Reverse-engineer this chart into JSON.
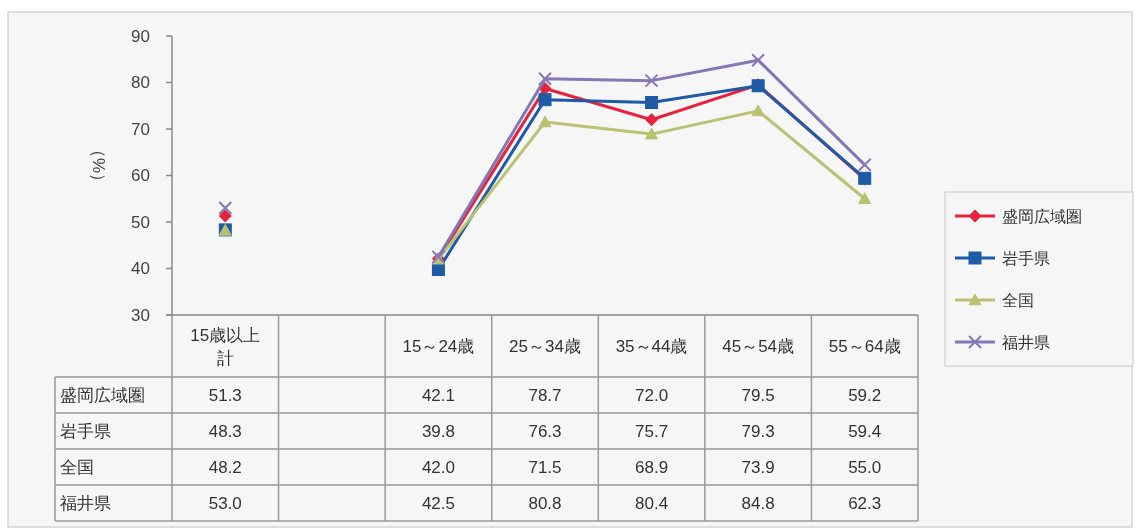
{
  "chart_data": {
    "type": "line",
    "ylabel": "（%）",
    "categories": [
      "15歳以上計",
      null,
      "15～24歳",
      "25～34歳",
      "35～44歳",
      "45～54歳",
      "55～64歳"
    ],
    "series": [
      {
        "name": "盛岡広域圏",
        "color": "#e4233c",
        "marker": "diamond",
        "values": [
          51.3,
          null,
          42.1,
          78.7,
          72.0,
          79.5,
          59.2
        ],
        "value_labels": [
          "51.3",
          null,
          "42.1",
          "78.7",
          "72.0",
          "79.5",
          "59.2"
        ]
      },
      {
        "name": "岩手県",
        "color": "#1f5aa6",
        "marker": "square",
        "values": [
          48.3,
          null,
          39.8,
          76.3,
          75.7,
          79.3,
          59.4
        ],
        "value_labels": [
          "48.3",
          null,
          "39.8",
          "76.3",
          "75.7",
          "79.3",
          "59.4"
        ]
      },
      {
        "name": "全国",
        "color": "#b9c272",
        "marker": "triangle",
        "values": [
          48.2,
          null,
          42.0,
          71.5,
          68.9,
          73.9,
          55.0
        ],
        "value_labels": [
          "48.2",
          null,
          "42.0",
          "71.5",
          "68.9",
          "73.9",
          "55.0"
        ]
      },
      {
        "name": "福井県",
        "color": "#8577b5",
        "marker": "cross",
        "values": [
          53.0,
          null,
          42.5,
          80.8,
          80.4,
          84.8,
          62.3
        ],
        "value_labels": [
          "53.0",
          null,
          "42.5",
          "80.8",
          "80.4",
          "84.8",
          "62.3"
        ]
      }
    ],
    "ylim": [
      30,
      90
    ],
    "yticks": [
      30,
      40,
      50,
      60,
      70,
      80,
      90
    ],
    "legend": "right"
  }
}
